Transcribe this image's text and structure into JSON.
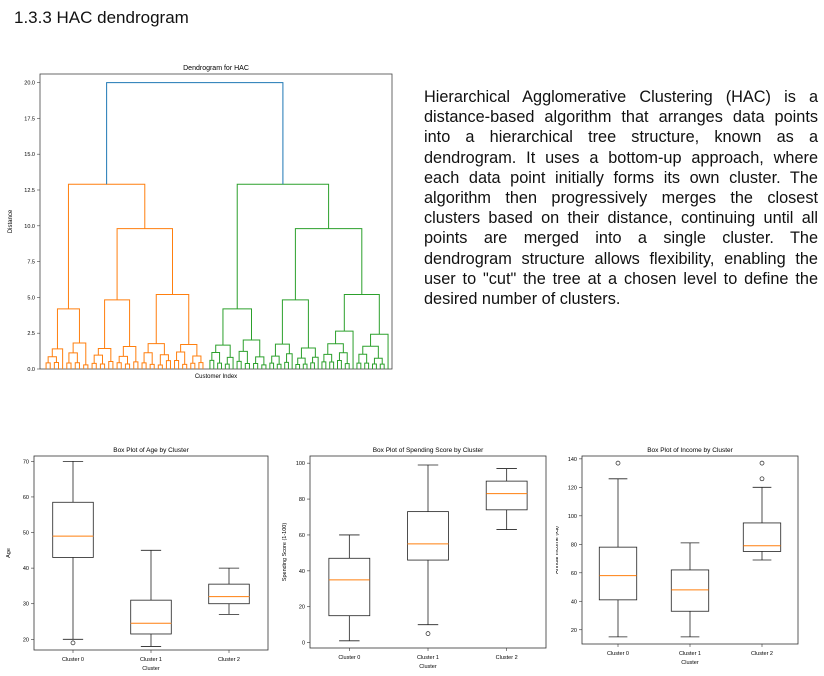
{
  "section_heading": "1.3.3 HAC dendrogram",
  "description": "Hierarchical Agglomerative Clustering (HAC) is a distance-based algorithm that arranges data points into a hierarchical tree structure, known as a dendrogram. It uses a bottom-up approach, where each data point initially forms its own cluster. The algorithm then progressively merges the closest clusters based on their distance, continuing until all points are merged into a single cluster. The dendrogram structure allows flexibility, enabling the user to \"cut\" the tree at a chosen level to define the desired number of clusters.",
  "colors": {
    "orange": "#ff7f0e",
    "green": "#2ca02c",
    "blue": "#1f77b4",
    "median": "#ff7f0e"
  },
  "chart_data": [
    {
      "type": "dendrogram",
      "title": "Dendrogram for HAC",
      "xlabel": "Customer Index",
      "ylabel": "Distance",
      "ylim": [
        0,
        20.6
      ],
      "yticks": [
        0.0,
        2.5,
        5.0,
        7.5,
        10.0,
        12.5,
        15.0,
        17.5,
        20.0
      ],
      "ytick_labels": [
        "0.0",
        "2.5",
        "5.0",
        "7.5",
        "10.0",
        "12.5",
        "15.0",
        "17.5",
        "20.0"
      ],
      "root_height": 20.0,
      "clusters": [
        {
          "color": "orange",
          "height": 12.9,
          "sub_heights": [
            9.8,
            5.2,
            4.2
          ]
        },
        {
          "color": "green",
          "height": 12.9,
          "sub_heights": [
            9.8,
            5.2,
            4.2
          ]
        }
      ]
    },
    {
      "type": "box",
      "title": "Box Plot of Age by Cluster",
      "xlabel": "Cluster",
      "ylabel": "Age",
      "ylim": [
        17,
        71.5
      ],
      "yticks": [
        20,
        30,
        40,
        50,
        60,
        70
      ],
      "categories": [
        "Cluster 0",
        "Cluster 1",
        "Cluster 2"
      ],
      "boxes": [
        {
          "whisker_low": 20,
          "q1": 43,
          "median": 49,
          "q3": 58.5,
          "whisker_high": 70,
          "fliers": [
            19
          ]
        },
        {
          "whisker_low": 18,
          "q1": 21.5,
          "median": 24.5,
          "q3": 31,
          "whisker_high": 45,
          "fliers": []
        },
        {
          "whisker_low": 27,
          "q1": 30,
          "median": 32,
          "q3": 35.5,
          "whisker_high": 40,
          "fliers": []
        }
      ]
    },
    {
      "type": "box",
      "title": "Box Plot of Spending Score by Cluster",
      "xlabel": "Cluster",
      "ylabel": "Spending Score (1-100)",
      "ylim": [
        -3,
        104
      ],
      "yticks": [
        0,
        20,
        40,
        60,
        80,
        100
      ],
      "categories": [
        "Cluster 0",
        "Cluster 1",
        "Cluster 2"
      ],
      "boxes": [
        {
          "whisker_low": 1,
          "q1": 15,
          "median": 35,
          "q3": 47,
          "whisker_high": 60,
          "fliers": []
        },
        {
          "whisker_low": 10,
          "q1": 46,
          "median": 55,
          "q3": 73,
          "whisker_high": 99,
          "fliers": [
            5
          ]
        },
        {
          "whisker_low": 63,
          "q1": 74,
          "median": 83,
          "q3": 90,
          "whisker_high": 97,
          "fliers": []
        }
      ]
    },
    {
      "type": "box",
      "title": "Box Plot of Income by Cluster",
      "xlabel": "Cluster",
      "ylabel": "Annual Income (k$)",
      "ylim": [
        10,
        142
      ],
      "yticks": [
        20,
        40,
        60,
        80,
        100,
        120,
        140
      ],
      "categories": [
        "Cluster 0",
        "Cluster 1",
        "Cluster 2"
      ],
      "boxes": [
        {
          "whisker_low": 15,
          "q1": 41,
          "median": 58,
          "q3": 78,
          "whisker_high": 126,
          "fliers": [
            137
          ]
        },
        {
          "whisker_low": 15,
          "q1": 33,
          "median": 48,
          "q3": 62,
          "whisker_high": 81,
          "fliers": []
        },
        {
          "whisker_low": 69,
          "q1": 75,
          "median": 79,
          "q3": 95,
          "whisker_high": 120,
          "fliers": [
            126,
            137
          ]
        }
      ]
    }
  ]
}
